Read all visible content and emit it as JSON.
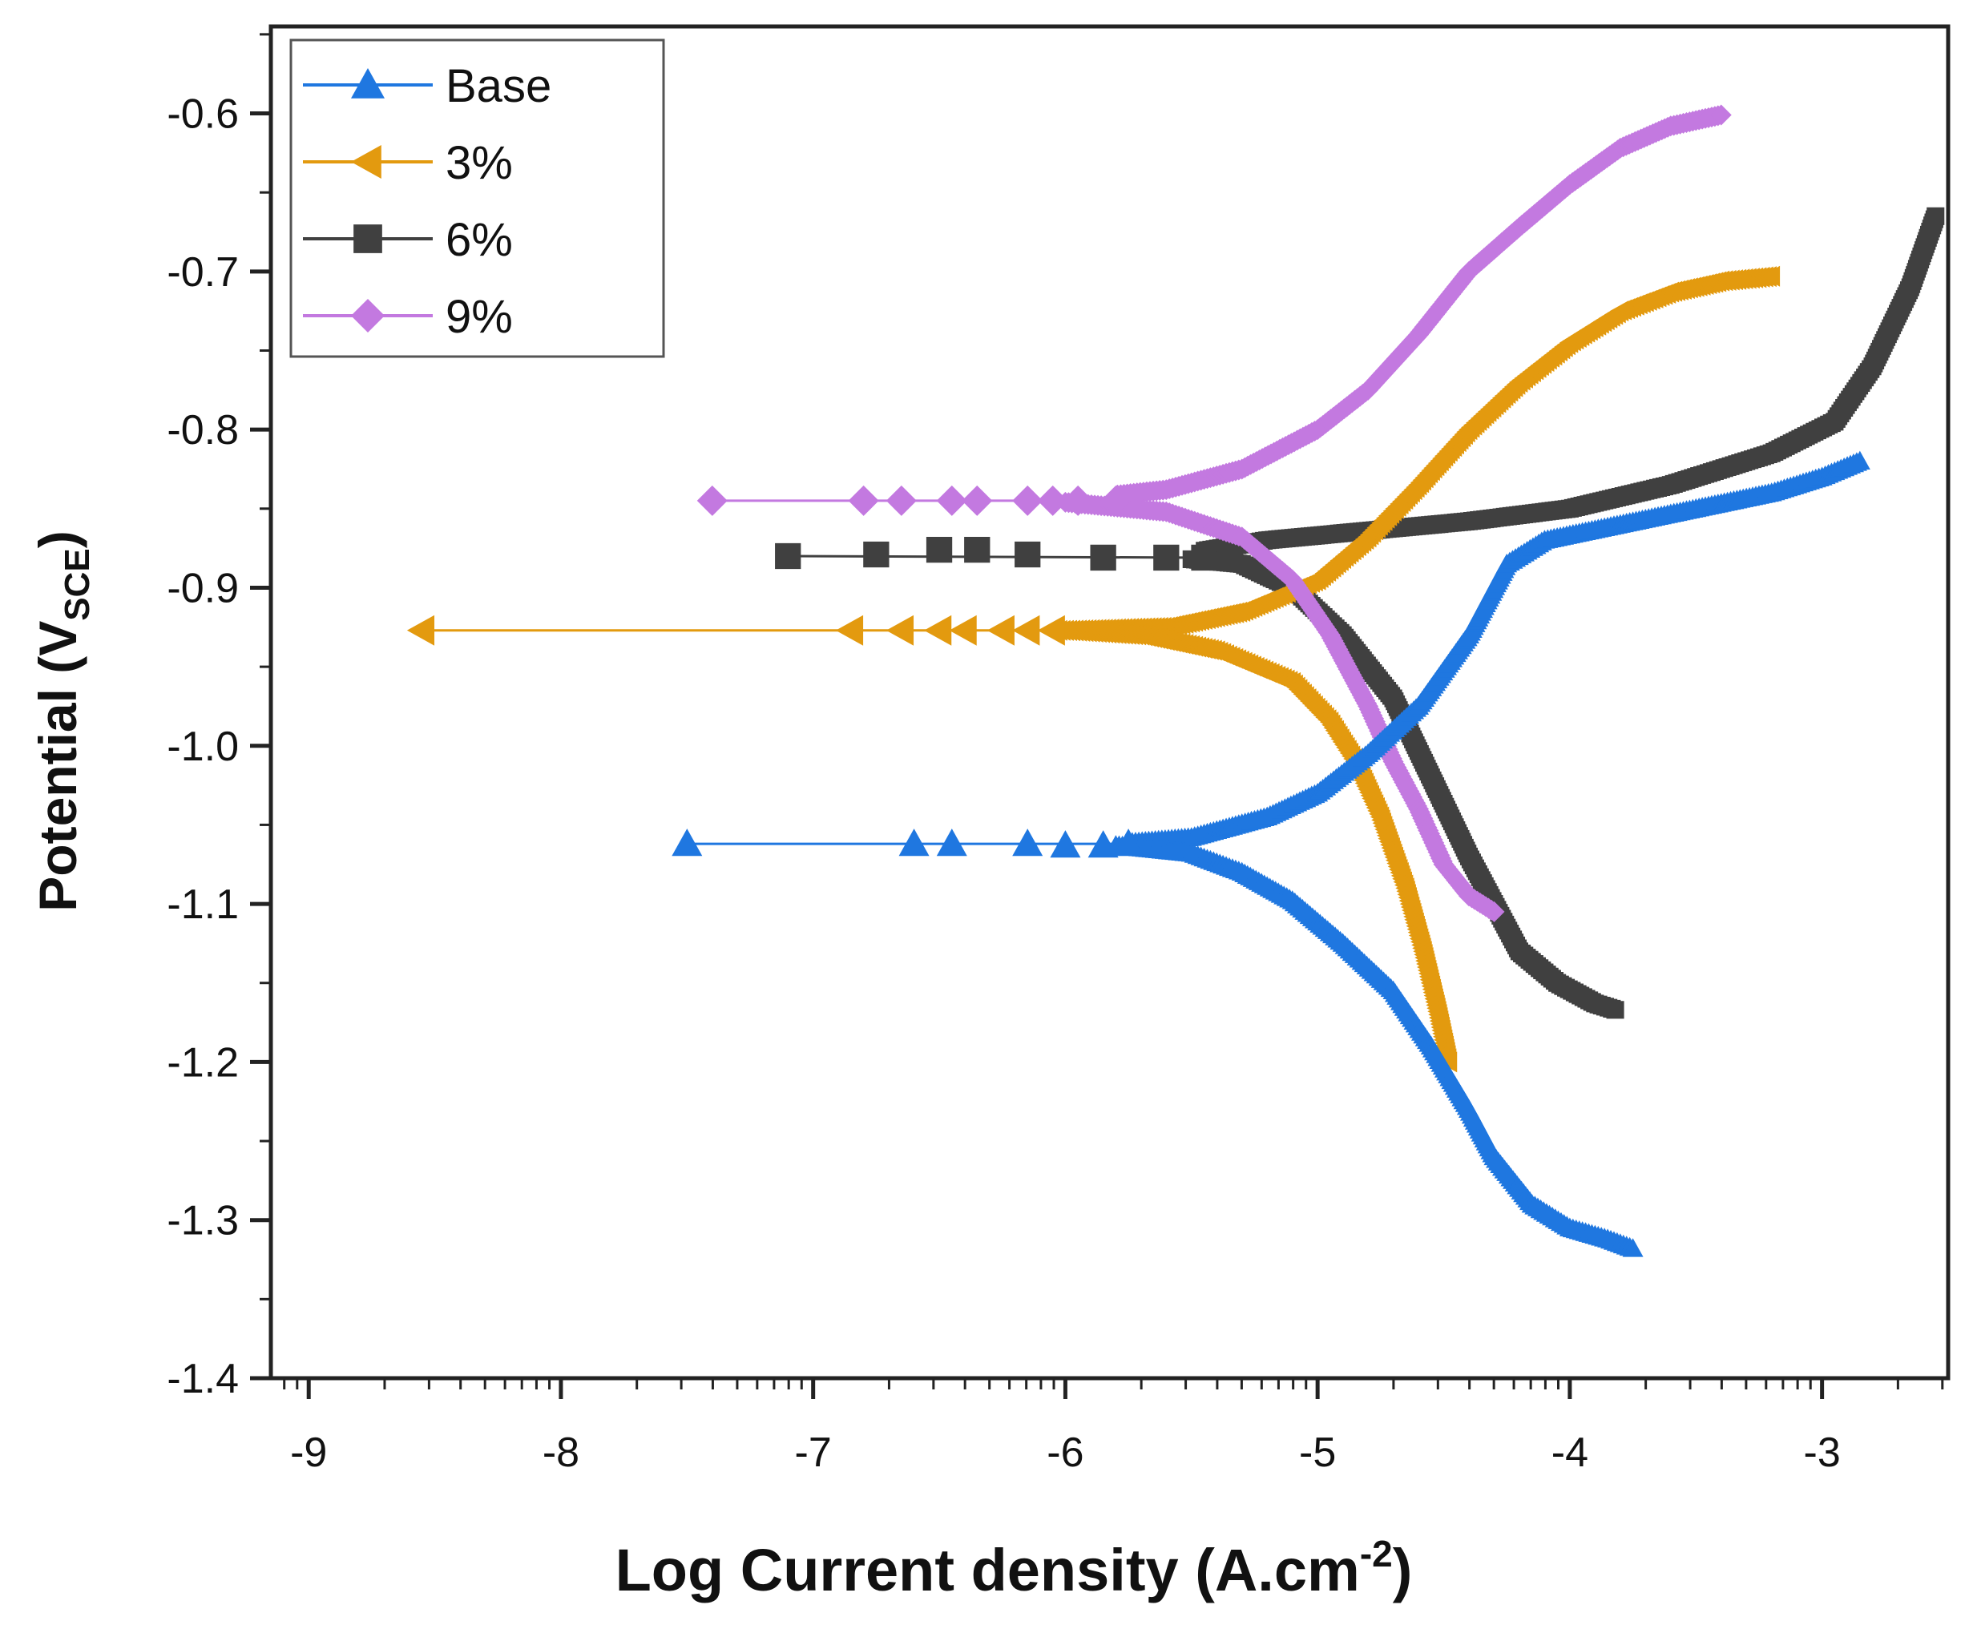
{
  "chart_data": {
    "type": "line",
    "xlabel": "Log Current density (A.cm",
    "xlabel_sup": "-2",
    "xlabel_end": ")",
    "ylabel": "Potential (V",
    "ylabel_sub": "SCE",
    "ylabel_end": ")",
    "xlim": [
      -9.15,
      -2.5
    ],
    "ylim": [
      -1.4,
      -0.545
    ],
    "x_ticks": [
      -9,
      -8,
      -7,
      -6,
      -5,
      -4,
      -3
    ],
    "x_tick_labels": [
      "-9",
      "-8",
      "-7",
      "-6",
      "-5",
      "-4",
      "-3"
    ],
    "y_ticks": [
      -1.4,
      -1.3,
      -1.2,
      -1.1,
      -1.0,
      -0.9,
      -0.8,
      -0.7,
      -0.6
    ],
    "y_tick_labels": [
      "-1.4",
      "-1.3",
      "-1.2",
      "-1.1",
      "-1.0",
      "-0.9",
      "-0.8",
      "-0.7",
      "-0.6"
    ],
    "legend_position": "top-left",
    "series": [
      {
        "name": "Base",
        "color": "#1f77e0",
        "marker": "triangle-up",
        "sparse_markers": [
          [
            -7.5,
            -1.062
          ],
          [
            -6.6,
            -1.062
          ],
          [
            -6.45,
            -1.062
          ],
          [
            -6.15,
            -1.062
          ],
          [
            -6.0,
            -1.063
          ],
          [
            -5.85,
            -1.063
          ],
          [
            -5.75,
            -1.062
          ]
        ],
        "anodic": [
          [
            -7.5,
            -1.062
          ],
          [
            -6.5,
            -1.062
          ],
          [
            -5.8,
            -1.062
          ],
          [
            -5.5,
            -1.058
          ],
          [
            -5.2,
            -1.045
          ],
          [
            -5.0,
            -1.03
          ],
          [
            -4.8,
            -1.005
          ],
          [
            -4.6,
            -0.975
          ],
          [
            -4.4,
            -0.93
          ],
          [
            -4.25,
            -0.885
          ],
          [
            -4.1,
            -0.87
          ],
          [
            -3.8,
            -0.86
          ],
          [
            -3.5,
            -0.85
          ],
          [
            -3.2,
            -0.84
          ],
          [
            -3.0,
            -0.83
          ],
          [
            -2.85,
            -0.82
          ]
        ],
        "cathodic": [
          [
            -5.8,
            -1.063
          ],
          [
            -5.5,
            -1.068
          ],
          [
            -5.3,
            -1.08
          ],
          [
            -5.1,
            -1.098
          ],
          [
            -4.9,
            -1.125
          ],
          [
            -4.7,
            -1.155
          ],
          [
            -4.55,
            -1.19
          ],
          [
            -4.4,
            -1.23
          ],
          [
            -4.3,
            -1.26
          ],
          [
            -4.15,
            -1.29
          ],
          [
            -4.0,
            -1.305
          ],
          [
            -3.85,
            -1.312
          ],
          [
            -3.75,
            -1.318
          ]
        ]
      },
      {
        "name": "3%",
        "color": "#e39a0f",
        "marker": "triangle-left",
        "sparse_markers": [
          [
            -8.55,
            -0.927
          ],
          [
            -6.85,
            -0.927
          ],
          [
            -6.65,
            -0.927
          ],
          [
            -6.5,
            -0.927
          ],
          [
            -6.4,
            -0.927
          ],
          [
            -6.25,
            -0.927
          ],
          [
            -6.15,
            -0.927
          ],
          [
            -6.05,
            -0.927
          ]
        ],
        "anodic": [
          [
            -8.55,
            -0.927
          ],
          [
            -7.0,
            -0.927
          ],
          [
            -6.0,
            -0.927
          ],
          [
            -5.6,
            -0.925
          ],
          [
            -5.3,
            -0.915
          ],
          [
            -5.0,
            -0.895
          ],
          [
            -4.8,
            -0.868
          ],
          [
            -4.6,
            -0.835
          ],
          [
            -4.4,
            -0.8
          ],
          [
            -4.2,
            -0.77
          ],
          [
            -4.0,
            -0.745
          ],
          [
            -3.8,
            -0.725
          ],
          [
            -3.6,
            -0.713
          ],
          [
            -3.4,
            -0.706
          ],
          [
            -3.2,
            -0.703
          ]
        ],
        "cathodic": [
          [
            -6.0,
            -0.927
          ],
          [
            -5.7,
            -0.93
          ],
          [
            -5.4,
            -0.94
          ],
          [
            -5.1,
            -0.96
          ],
          [
            -4.95,
            -0.985
          ],
          [
            -4.85,
            -1.01
          ],
          [
            -4.75,
            -1.045
          ],
          [
            -4.65,
            -1.09
          ],
          [
            -4.58,
            -1.13
          ],
          [
            -4.52,
            -1.17
          ],
          [
            -4.48,
            -1.2
          ]
        ]
      },
      {
        "name": "6%",
        "color": "#404040",
        "marker": "square",
        "sparse_markers": [
          [
            -7.1,
            -0.88
          ],
          [
            -6.75,
            -0.879
          ],
          [
            -6.5,
            -0.876
          ],
          [
            -6.35,
            -0.876
          ],
          [
            -6.15,
            -0.879
          ],
          [
            -5.85,
            -0.881
          ],
          [
            -5.6,
            -0.881
          ],
          [
            -5.45,
            -0.881
          ]
        ],
        "anodic": [
          [
            -7.1,
            -0.88
          ],
          [
            -6.5,
            -0.877
          ],
          [
            -6.0,
            -0.879
          ],
          [
            -5.5,
            -0.878
          ],
          [
            -5.2,
            -0.87
          ],
          [
            -4.8,
            -0.864
          ],
          [
            -4.4,
            -0.858
          ],
          [
            -4.0,
            -0.85
          ],
          [
            -3.6,
            -0.835
          ],
          [
            -3.2,
            -0.815
          ],
          [
            -2.95,
            -0.795
          ],
          [
            -2.8,
            -0.76
          ],
          [
            -2.65,
            -0.71
          ],
          [
            -2.55,
            -0.665
          ]
        ],
        "cathodic": [
          [
            -5.5,
            -0.882
          ],
          [
            -5.3,
            -0.885
          ],
          [
            -5.1,
            -0.9
          ],
          [
            -4.9,
            -0.93
          ],
          [
            -4.7,
            -0.97
          ],
          [
            -4.55,
            -1.02
          ],
          [
            -4.4,
            -1.07
          ],
          [
            -4.3,
            -1.1
          ],
          [
            -4.2,
            -1.13
          ],
          [
            -4.05,
            -1.15
          ],
          [
            -3.9,
            -1.163
          ],
          [
            -3.82,
            -1.167
          ]
        ]
      },
      {
        "name": "9%",
        "color": "#c379e0",
        "marker": "diamond",
        "sparse_markers": [
          [
            -7.4,
            -0.845
          ],
          [
            -6.8,
            -0.845
          ],
          [
            -6.65,
            -0.845
          ],
          [
            -6.45,
            -0.845
          ],
          [
            -6.35,
            -0.845
          ],
          [
            -6.15,
            -0.845
          ],
          [
            -6.05,
            -0.845
          ],
          [
            -5.95,
            -0.845
          ],
          [
            -5.8,
            -0.845
          ]
        ],
        "anodic": [
          [
            -7.4,
            -0.845
          ],
          [
            -6.5,
            -0.845
          ],
          [
            -6.0,
            -0.845
          ],
          [
            -5.6,
            -0.838
          ],
          [
            -5.3,
            -0.825
          ],
          [
            -5.0,
            -0.8
          ],
          [
            -4.8,
            -0.775
          ],
          [
            -4.6,
            -0.74
          ],
          [
            -4.4,
            -0.7
          ],
          [
            -4.2,
            -0.672
          ],
          [
            -4.0,
            -0.645
          ],
          [
            -3.8,
            -0.622
          ],
          [
            -3.6,
            -0.608
          ],
          [
            -3.4,
            -0.601
          ]
        ],
        "cathodic": [
          [
            -6.0,
            -0.846
          ],
          [
            -5.6,
            -0.852
          ],
          [
            -5.3,
            -0.868
          ],
          [
            -5.1,
            -0.895
          ],
          [
            -4.95,
            -0.93
          ],
          [
            -4.8,
            -0.975
          ],
          [
            -4.7,
            -1.01
          ],
          [
            -4.6,
            -1.04
          ],
          [
            -4.5,
            -1.075
          ],
          [
            -4.4,
            -1.095
          ],
          [
            -4.3,
            -1.105
          ]
        ]
      }
    ]
  }
}
